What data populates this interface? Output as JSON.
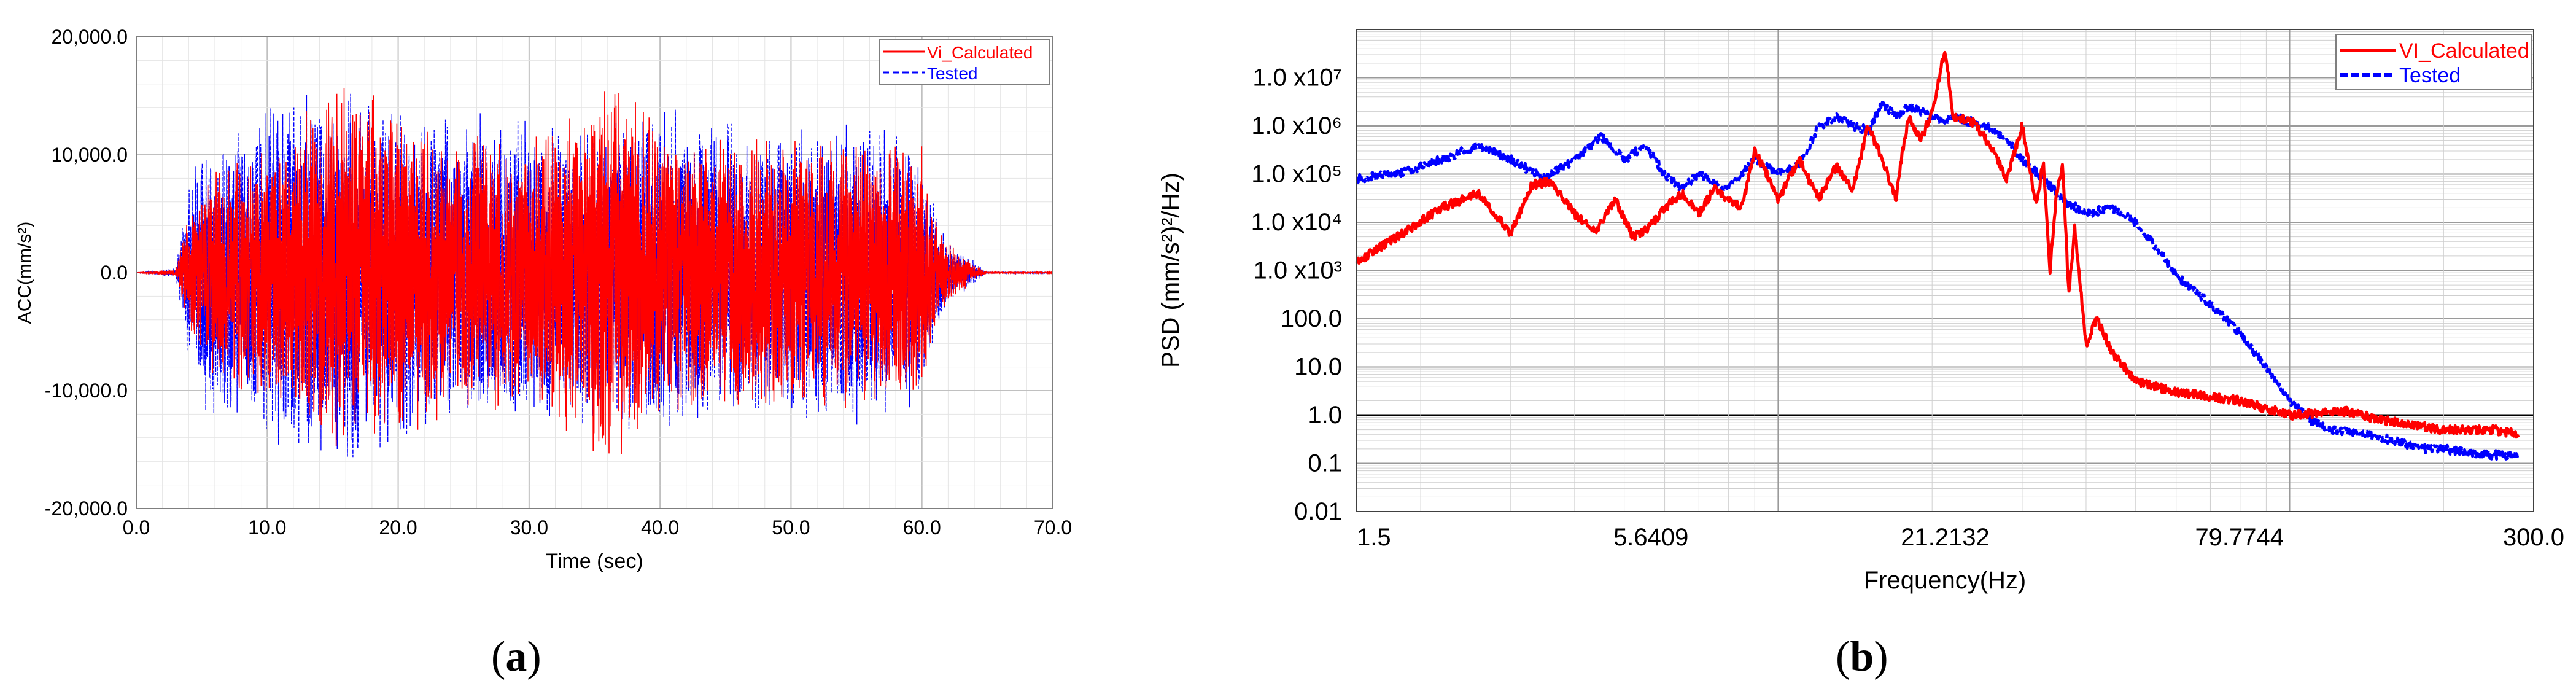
{
  "chart_data": [
    {
      "type": "line",
      "panel_label": "a",
      "xlabel": "Time (sec)",
      "ylabel": "ACC(mm/s²)",
      "xlim": [
        0,
        70
      ],
      "ylim": [
        -20000,
        20000
      ],
      "x_ticks": [
        "0.0",
        "10.0",
        "20.0",
        "30.0",
        "40.0",
        "50.0",
        "60.0",
        "70.0"
      ],
      "y_ticks": [
        "20,000.0",
        "10,000.0",
        "0.0",
        "-10,000.0",
        "-20,000.0"
      ],
      "grid": true,
      "legend_position": "top-right",
      "series": [
        {
          "name": "Vi_Calculated",
          "color": "#ff0000",
          "style": "solid",
          "envelope": {
            "t": [
              0,
              3,
              4,
              5,
              10,
              16,
              20,
              25,
              30,
              36,
              40,
              45,
              50,
              55,
              60,
              61,
              62,
              64,
              65,
              70
            ],
            "amp": [
              0,
              300,
              5000,
              9000,
              11000,
              17000,
              14000,
              12000,
              12000,
              17500,
              13000,
              12000,
              11500,
              12000,
              11000,
              5000,
              2500,
              800,
              0,
              0
            ]
          }
        },
        {
          "name": "Tested",
          "color": "#0000ff",
          "style": "dashed",
          "envelope": {
            "t": [
              0,
              3,
              4,
              5,
              10,
              16,
              20,
              25,
              30,
              36,
              40,
              45,
              50,
              55,
              60,
              61,
              62,
              64,
              65,
              70
            ],
            "amp": [
              0,
              400,
              8000,
              12000,
              15000,
              17000,
              14000,
              13500,
              14000,
              14000,
              14500,
              13000,
              12500,
              14000,
              12000,
              6000,
              3000,
              1000,
              0,
              0
            ]
          }
        }
      ]
    },
    {
      "type": "line",
      "panel_label": "b",
      "xlabel": "Frequency(Hz)",
      "ylabel": "PSD (mm/s²)²/Hz)",
      "x_scale": "log",
      "y_scale": "log",
      "xlim": [
        1.5,
        300
      ],
      "ylim": [
        0.01,
        100000000
      ],
      "x_ticks": [
        "1.5",
        "5.6409",
        "21.2132",
        "79.7744",
        "300.0"
      ],
      "y_ticks": [
        "1.0 x10⁷",
        "1.0 x10⁶",
        "1.0 x10⁵",
        "1.0 x10⁴",
        "1.0 x10³",
        "100.0",
        "10.0",
        "1.0",
        "0.1",
        "0.01"
      ],
      "grid": true,
      "legend_position": "top-right",
      "series": [
        {
          "name": "VI_Calculated",
          "color": "#ff0000",
          "style": "solid",
          "x": [
            1.5,
            1.8,
            2.2,
            2.6,
            3.0,
            3.3,
            3.6,
            4.0,
            4.4,
            4.8,
            5.2,
            5.6,
            6.0,
            6.5,
            7.0,
            7.5,
            8.0,
            8.5,
            9.0,
            9.5,
            10.0,
            11.0,
            12.0,
            13.0,
            14.0,
            15.0,
            16.0,
            17.0,
            17.5,
            18.0,
            19.0,
            20.0,
            21.2,
            22.0,
            24.0,
            26.0,
            28.0,
            30.0,
            32.0,
            33.0,
            34.0,
            35.0,
            36.0,
            37.0,
            38.0,
            40.0,
            42.0,
            45.0,
            50.0,
            60.0,
            80.0,
            100.0,
            130.0,
            150.0,
            200.0,
            250.0,
            280.0
          ],
          "y": [
            1500,
            5000,
            20000,
            40000,
            6000,
            60000,
            70000,
            15000,
            6000,
            30000,
            5000,
            8000,
            20000,
            40000,
            15000,
            50000,
            30000,
            20000,
            300000,
            100000,
            30000,
            200000,
            30000,
            150000,
            50000,
            1000000,
            200000,
            30000,
            300000,
            1500000,
            500000,
            2000000,
            40000000,
            1500000,
            1200000,
            400000,
            80000,
            1000000,
            20000,
            200000,
            1000,
            40000,
            150000,
            300,
            8000,
            30,
            100,
            20,
            5,
            3,
            2,
            1,
            1.2,
            0.8,
            0.5,
            0.5,
            0.4
          ]
        },
        {
          "name": "Tested",
          "color": "#0000ff",
          "style": "dashed",
          "x": [
            1.5,
            1.8,
            2.2,
            2.6,
            3.0,
            3.5,
            4.0,
            4.5,
            5.0,
            5.5,
            6.0,
            6.5,
            7.0,
            8.0,
            9.0,
            10.0,
            11.0,
            12.0,
            13.0,
            14.0,
            15.0,
            16.0,
            17.0,
            18.0,
            19.0,
            20.0,
            21.2,
            22.0,
            24.0,
            26.0,
            28.0,
            30.0,
            33.0,
            36.0,
            40.0,
            45.0,
            50.0,
            55.0,
            60.0,
            70.0,
            80.0,
            90.0,
            100.0,
            110.0,
            120.0,
            140.0,
            160.0,
            180.0,
            200.0,
            240.0,
            280.0
          ],
          "y": [
            80000,
            100000,
            200000,
            400000,
            200000,
            80000,
            200000,
            600000,
            200000,
            400000,
            100000,
            50000,
            100000,
            50000,
            200000,
            100000,
            150000,
            1000000,
            1500000,
            1000000,
            800000,
            3000000,
            1500000,
            2500000,
            2000000,
            1500000,
            1200000,
            1500000,
            1200000,
            900000,
            500000,
            200000,
            80000,
            30000,
            15000,
            20000,
            10000,
            3000,
            800,
            200,
            50,
            10,
            2,
            0.8,
            0.5,
            0.4,
            0.3,
            0.2,
            0.2,
            0.15,
            0.15
          ]
        }
      ]
    }
  ],
  "captions": {
    "a": "a",
    "b": "b"
  }
}
